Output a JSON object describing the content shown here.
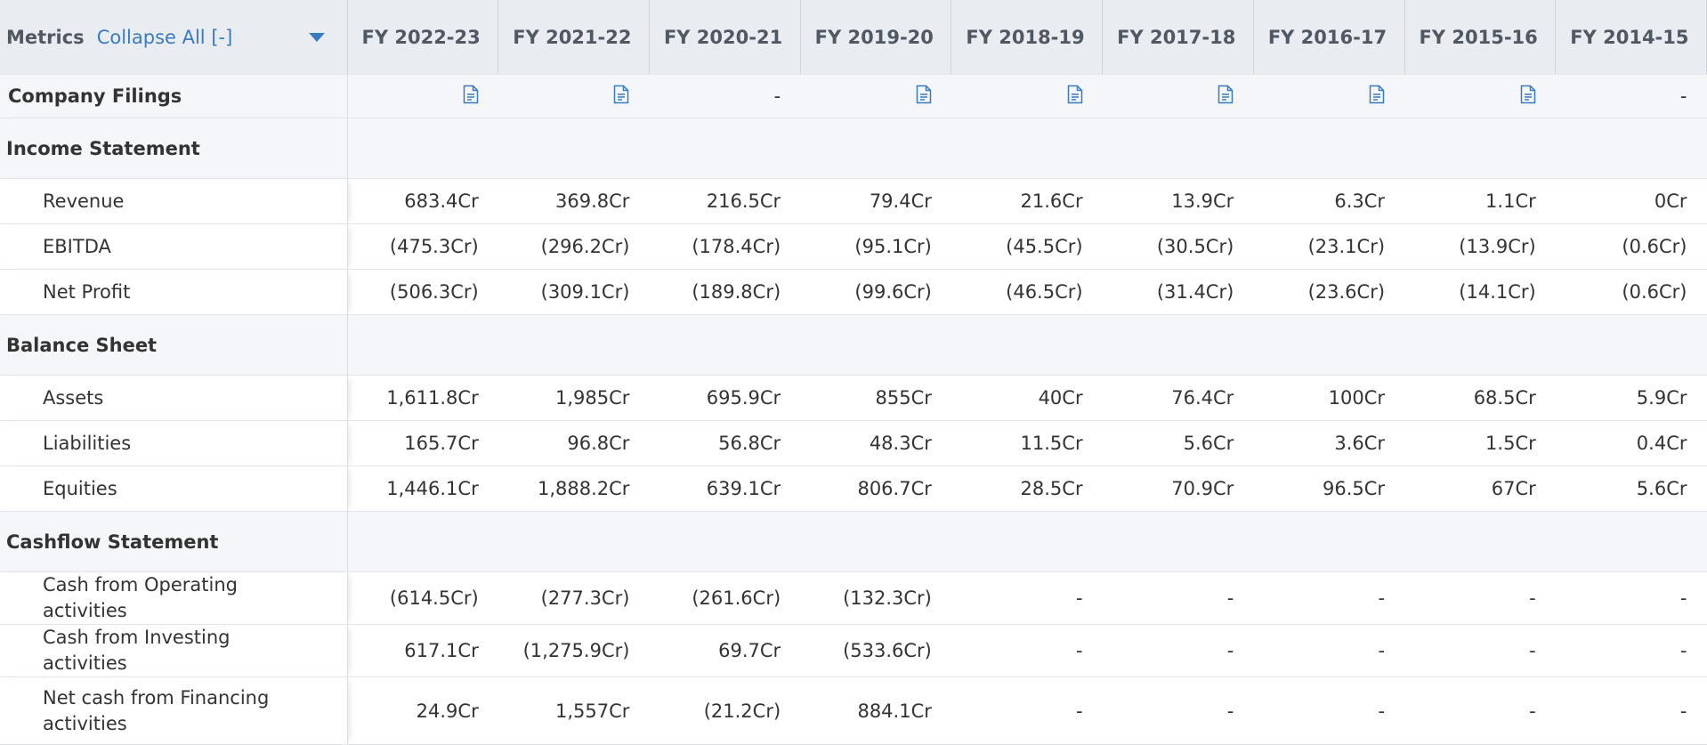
{
  "header": {
    "metrics": "Metrics",
    "collapse": "Collapse All [-]",
    "columns": [
      "FY 2022-23",
      "FY 2021-22",
      "FY 2020-21",
      "FY 2019-20",
      "FY 2018-19",
      "FY 2017-18",
      "FY 2016-17",
      "FY 2015-16",
      "FY 2014-15"
    ]
  },
  "filings": {
    "label": "Company Filings",
    "cells": [
      null,
      null,
      "-",
      null,
      null,
      null,
      null,
      null,
      "-"
    ]
  },
  "sections": [
    {
      "title": "Income Statement",
      "rows": [
        {
          "label": "Revenue",
          "values": [
            "683.4Cr",
            "369.8Cr",
            "216.5Cr",
            "79.4Cr",
            "21.6Cr",
            "13.9Cr",
            "6.3Cr",
            "1.1Cr",
            "0Cr"
          ]
        },
        {
          "label": "EBITDA",
          "values": [
            "(475.3Cr)",
            "(296.2Cr)",
            "(178.4Cr)",
            "(95.1Cr)",
            "(45.5Cr)",
            "(30.5Cr)",
            "(23.1Cr)",
            "(13.9Cr)",
            "(0.6Cr)"
          ]
        },
        {
          "label": "Net Profit",
          "values": [
            "(506.3Cr)",
            "(309.1Cr)",
            "(189.8Cr)",
            "(99.6Cr)",
            "(46.5Cr)",
            "(31.4Cr)",
            "(23.6Cr)",
            "(14.1Cr)",
            "(0.6Cr)"
          ]
        }
      ]
    },
    {
      "title": "Balance Sheet",
      "rows": [
        {
          "label": "Assets",
          "values": [
            "1,611.8Cr",
            "1,985Cr",
            "695.9Cr",
            "855Cr",
            "40Cr",
            "76.4Cr",
            "100Cr",
            "68.5Cr",
            "5.9Cr"
          ]
        },
        {
          "label": "Liabilities",
          "values": [
            "165.7Cr",
            "96.8Cr",
            "56.8Cr",
            "48.3Cr",
            "11.5Cr",
            "5.6Cr",
            "3.6Cr",
            "1.5Cr",
            "0.4Cr"
          ]
        },
        {
          "label": "Equities",
          "values": [
            "1,446.1Cr",
            "1,888.2Cr",
            "639.1Cr",
            "806.7Cr",
            "28.5Cr",
            "70.9Cr",
            "96.5Cr",
            "67Cr",
            "5.6Cr"
          ]
        }
      ]
    },
    {
      "title": "Cashflow Statement",
      "rows": [
        {
          "label": "Cash from Operating activities",
          "values": [
            "(614.5Cr)",
            "(277.3Cr)",
            "(261.6Cr)",
            "(132.3Cr)",
            "-",
            "-",
            "-",
            "-",
            "-"
          ]
        },
        {
          "label": "Cash from Investing activities",
          "values": [
            "617.1Cr",
            "(1,275.9Cr)",
            "69.7Cr",
            "(533.6Cr)",
            "-",
            "-",
            "-",
            "-",
            "-"
          ]
        },
        {
          "label": "Net cash from Financing activities",
          "values": [
            "24.9Cr",
            "1,557Cr",
            "(21.2Cr)",
            "884.1Cr",
            "-",
            "-",
            "-",
            "-",
            "-"
          ]
        }
      ]
    }
  ]
}
